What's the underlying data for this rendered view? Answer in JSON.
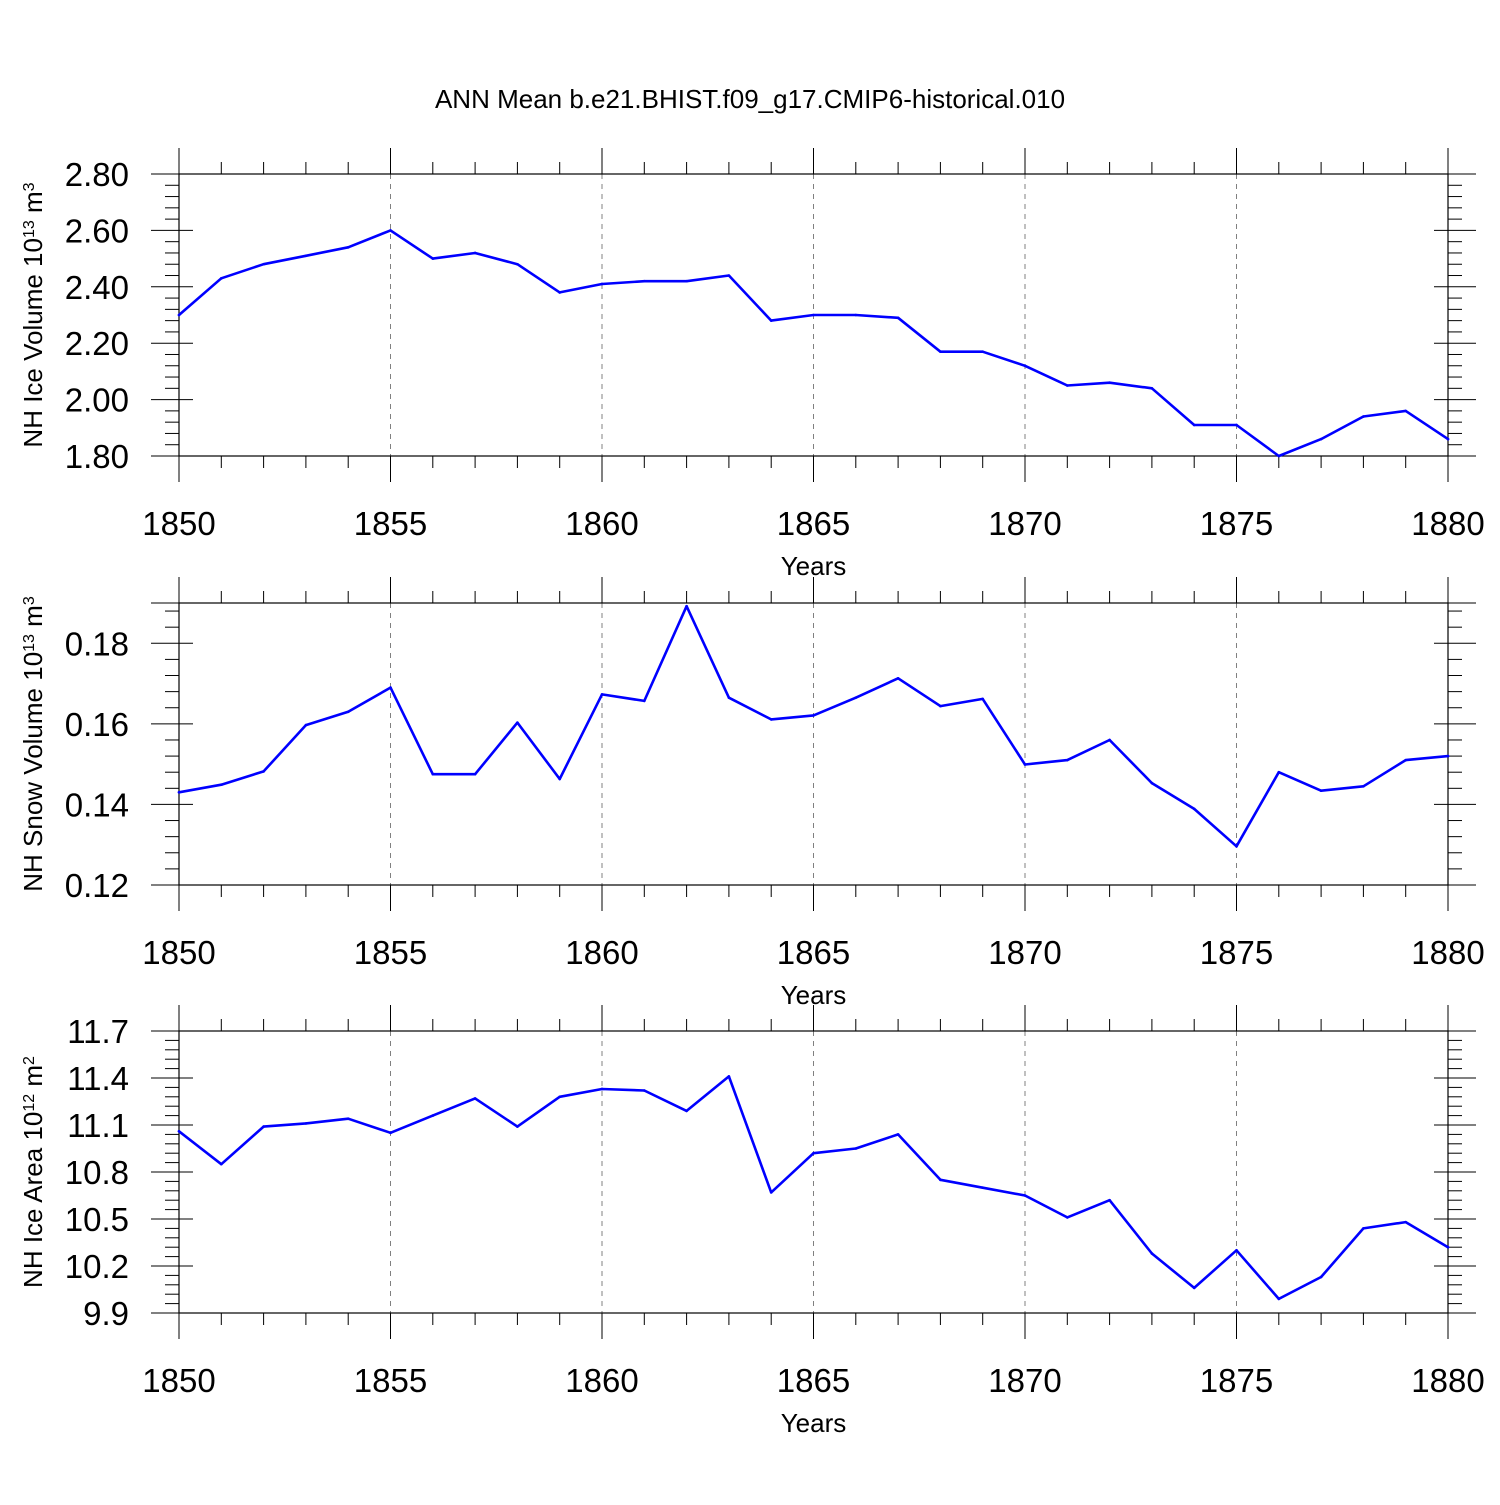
{
  "title": "ANN Mean b.e21.BHIST.f09_g17.CMIP6-historical.010",
  "colors": {
    "line": "#0000ff",
    "axis": "#000000",
    "grid": "#808080"
  },
  "chart_data": [
    {
      "type": "line",
      "xlabel": "Years",
      "ylabel_text": "NH Ice Volume 10",
      "ylabel_exp": "13",
      "ylabel_unit": "m",
      "ylabel_unit_exp": "3",
      "xlim": [
        1850,
        1880
      ],
      "ylim": [
        1.8,
        2.8
      ],
      "xticks": [
        1850,
        1855,
        1860,
        1865,
        1870,
        1875,
        1880
      ],
      "xtick_labels": [
        "1850",
        "1855",
        "1860",
        "1865",
        "1870",
        "1875",
        "1880"
      ],
      "yticks": [
        1.8,
        2.0,
        2.2,
        2.4,
        2.6,
        2.8
      ],
      "ytick_labels": [
        "1.80",
        "2.00",
        "2.20",
        "2.40",
        "2.60",
        "2.80"
      ],
      "grid": "vertical dashed at major x ticks",
      "x": [
        1850,
        1851,
        1852,
        1853,
        1854,
        1855,
        1856,
        1857,
        1858,
        1859,
        1860,
        1861,
        1862,
        1863,
        1864,
        1865,
        1866,
        1867,
        1868,
        1869,
        1870,
        1871,
        1872,
        1873,
        1874,
        1875,
        1876,
        1877,
        1878,
        1879,
        1880
      ],
      "values": [
        2.3,
        2.43,
        2.48,
        2.51,
        2.54,
        2.6,
        2.5,
        2.52,
        2.48,
        2.38,
        2.41,
        2.42,
        2.42,
        2.44,
        2.28,
        2.3,
        2.3,
        2.29,
        2.17,
        2.17,
        2.12,
        2.05,
        2.06,
        2.04,
        1.91,
        1.91,
        1.8,
        1.86,
        1.94,
        1.96,
        1.86
      ]
    },
    {
      "type": "line",
      "xlabel": "Years",
      "ylabel_text": "NH Snow Volume 10",
      "ylabel_exp": "13",
      "ylabel_unit": "m",
      "ylabel_unit_exp": "3",
      "xlim": [
        1850,
        1880
      ],
      "ylim": [
        0.12,
        0.19
      ],
      "xticks": [
        1850,
        1855,
        1860,
        1865,
        1870,
        1875,
        1880
      ],
      "xtick_labels": [
        "1850",
        "1855",
        "1860",
        "1865",
        "1870",
        "1875",
        "1880"
      ],
      "yticks": [
        0.12,
        0.14,
        0.16,
        0.18
      ],
      "ytick_labels": [
        "0.12",
        "0.14",
        "0.16",
        "0.18"
      ],
      "grid": "vertical dashed at major x ticks",
      "x": [
        1850,
        1851,
        1852,
        1853,
        1854,
        1855,
        1856,
        1857,
        1858,
        1859,
        1860,
        1861,
        1862,
        1863,
        1864,
        1865,
        1866,
        1867,
        1868,
        1869,
        1870,
        1871,
        1872,
        1873,
        1874,
        1875,
        1876,
        1877,
        1878,
        1879,
        1880
      ],
      "values": [
        0.143,
        0.1449,
        0.1482,
        0.1597,
        0.163,
        0.169,
        0.1475,
        0.1475,
        0.1603,
        0.1463,
        0.1673,
        0.1657,
        0.1892,
        0.1665,
        0.1611,
        0.1621,
        0.1665,
        0.1713,
        0.1644,
        0.1662,
        0.1499,
        0.151,
        0.156,
        0.1453,
        0.1389,
        0.1296,
        0.148,
        0.1434,
        0.1445,
        0.151,
        0.152
      ]
    },
    {
      "type": "line",
      "xlabel": "Years",
      "ylabel_text": "NH Ice Area 10",
      "ylabel_exp": "12",
      "ylabel_unit": "m",
      "ylabel_unit_exp": "2",
      "xlim": [
        1850,
        1880
      ],
      "ylim": [
        9.9,
        11.7
      ],
      "xticks": [
        1850,
        1855,
        1860,
        1865,
        1870,
        1875,
        1880
      ],
      "xtick_labels": [
        "1850",
        "1855",
        "1860",
        "1865",
        "1870",
        "1875",
        "1880"
      ],
      "yticks": [
        9.9,
        10.2,
        10.5,
        10.8,
        11.1,
        11.4,
        11.7
      ],
      "ytick_labels": [
        "9.9",
        "10.2",
        "10.5",
        "10.8",
        "11.1",
        "11.4",
        "11.7"
      ],
      "grid": "vertical dashed at major x ticks",
      "x": [
        1850,
        1851,
        1852,
        1853,
        1854,
        1855,
        1856,
        1857,
        1858,
        1859,
        1860,
        1861,
        1862,
        1863,
        1864,
        1865,
        1866,
        1867,
        1868,
        1869,
        1870,
        1871,
        1872,
        1873,
        1874,
        1875,
        1876,
        1877,
        1878,
        1879,
        1880
      ],
      "values": [
        11.06,
        10.85,
        11.09,
        11.11,
        11.14,
        11.05,
        11.16,
        11.27,
        11.09,
        11.28,
        11.33,
        11.32,
        11.19,
        11.41,
        10.67,
        10.92,
        10.95,
        11.04,
        10.75,
        10.7,
        10.65,
        10.51,
        10.62,
        10.28,
        10.06,
        10.3,
        9.99,
        10.13,
        10.44,
        10.48,
        10.32
      ]
    }
  ]
}
